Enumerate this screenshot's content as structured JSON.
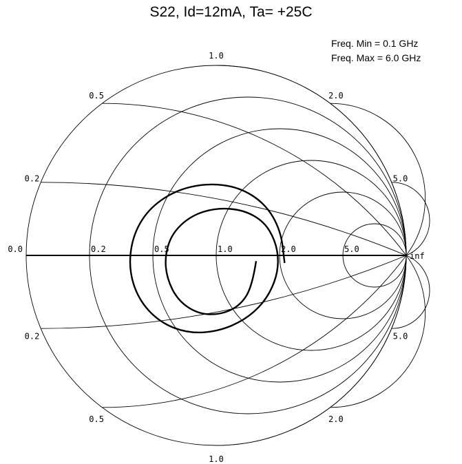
{
  "chart_data": {
    "type": "smith",
    "title": "S22, Id=12mA, Ta= +25C",
    "freq_min_label": "Freq. Min = 0.1 GHz",
    "freq_max_label": "Freq. Max = 6.0 GHz",
    "resistance_circles": [
      0.2,
      0.5,
      1.0,
      2.0,
      5.0
    ],
    "reactance_arcs": [
      0.2,
      0.5,
      1.0,
      2.0,
      5.0
    ],
    "resistance_labels": [
      "0.0",
      "0.2",
      "0.5",
      "1.0",
      "2.0",
      "5.0"
    ],
    "reactance_labels_upper": [
      "0.2",
      "0.5",
      "1.0",
      "2.0",
      "5.0"
    ],
    "reactance_labels_lower": [
      "0.2",
      "0.5",
      "1.0",
      "2.0",
      "5.0"
    ],
    "infinity_label": "inf",
    "series": [
      {
        "parameter": "S22",
        "points_gamma": [
          [
            0.21,
            -0.03
          ],
          [
            0.19,
            -0.16
          ],
          [
            0.13,
            -0.26
          ],
          [
            0.03,
            -0.31
          ],
          [
            -0.09,
            -0.31
          ],
          [
            -0.2,
            -0.24
          ],
          [
            -0.26,
            -0.12
          ],
          [
            -0.27,
            0.0
          ],
          [
            -0.23,
            0.12
          ],
          [
            -0.13,
            0.21
          ],
          [
            0.0,
            0.25
          ],
          [
            0.14,
            0.24
          ],
          [
            0.25,
            0.18
          ],
          [
            0.31,
            0.08
          ],
          [
            0.33,
            -0.03
          ],
          [
            0.31,
            -0.14
          ],
          [
            0.25,
            -0.25
          ],
          [
            0.15,
            -0.34
          ],
          [
            0.01,
            -0.4
          ],
          [
            -0.15,
            -0.41
          ],
          [
            -0.3,
            -0.35
          ],
          [
            -0.41,
            -0.23
          ],
          [
            -0.46,
            -0.07
          ],
          [
            -0.44,
            0.1
          ],
          [
            -0.36,
            0.24
          ],
          [
            -0.22,
            0.34
          ],
          [
            -0.05,
            0.38
          ],
          [
            0.12,
            0.36
          ],
          [
            0.26,
            0.27
          ],
          [
            0.34,
            0.13
          ],
          [
            0.36,
            -0.04
          ]
        ]
      }
    ]
  }
}
